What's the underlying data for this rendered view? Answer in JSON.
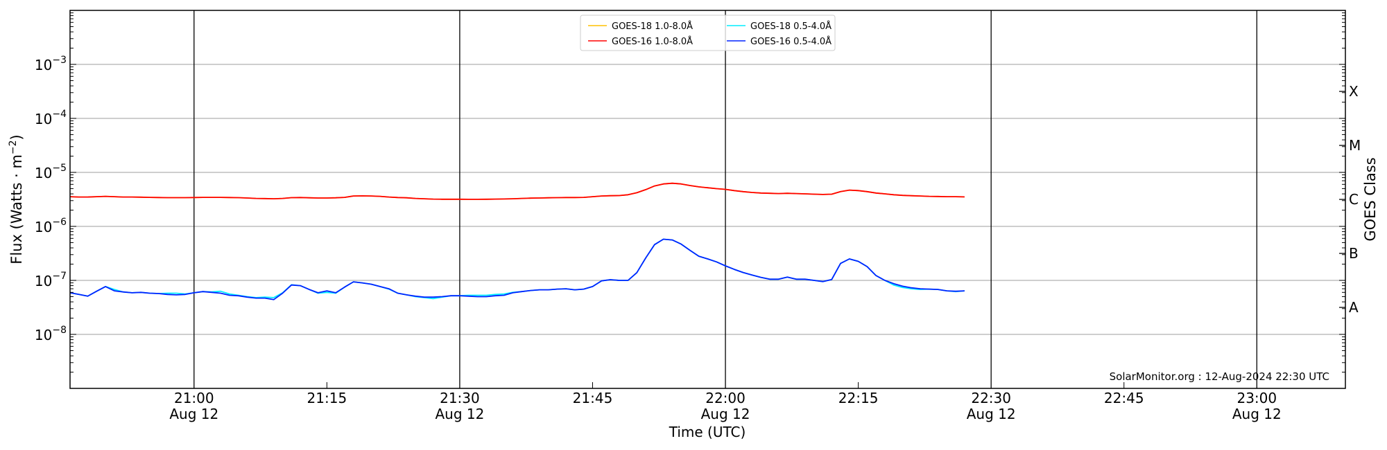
{
  "chart_data": {
    "type": "line",
    "xlabel": "Time (UTC)",
    "ylabel": {
      "prefix": "Flux (Watts · m",
      "exponent": "−2",
      "suffix": ")"
    },
    "y_scale": "log",
    "ylim": [
      1e-09,
      0.01
    ],
    "xlim": [
      "20:46",
      "23:10"
    ],
    "grid": true,
    "legend_position": "top-center",
    "x_ticks": [
      {
        "time": "21:00",
        "label": "21:00",
        "date": "Aug 12"
      },
      {
        "time": "21:15",
        "label": "21:15",
        "date": ""
      },
      {
        "time": "21:30",
        "label": "21:30",
        "date": "Aug 12"
      },
      {
        "time": "21:45",
        "label": "21:45",
        "date": ""
      },
      {
        "time": "22:00",
        "label": "22:00",
        "date": "Aug 12"
      },
      {
        "time": "22:15",
        "label": "22:15",
        "date": ""
      },
      {
        "time": "22:30",
        "label": "22:30",
        "date": "Aug 12"
      },
      {
        "time": "22:45",
        "label": "22:45",
        "date": ""
      },
      {
        "time": "23:00",
        "label": "23:00",
        "date": "Aug 12"
      }
    ],
    "y_ticks": [
      {
        "value": 1e-08,
        "base": "10",
        "exponent": "−8"
      },
      {
        "value": 1e-07,
        "base": "10",
        "exponent": "−7"
      },
      {
        "value": 1e-06,
        "base": "10",
        "exponent": "−6"
      },
      {
        "value": 1e-05,
        "base": "10",
        "exponent": "−5"
      },
      {
        "value": 0.0001,
        "base": "10",
        "exponent": "−4"
      },
      {
        "value": 0.001,
        "base": "10",
        "exponent": "−3"
      }
    ],
    "right_axis": {
      "label": "GOES Class",
      "classes": [
        {
          "label": "A",
          "value": 3.16e-08
        },
        {
          "label": "B",
          "value": 3.16e-07
        },
        {
          "label": "C",
          "value": 3.16e-06
        },
        {
          "label": "M",
          "value": 3.16e-05
        },
        {
          "label": "X",
          "value": 0.000316
        }
      ]
    },
    "start_time": "20:46",
    "interval_minutes": 1,
    "series": [
      {
        "name": "GOES-18 1.0-8.0Å",
        "color": "#ffc000",
        "values": [
          3.55e-06,
          3.5e-06,
          3.5e-06,
          3.55e-06,
          3.6e-06,
          3.55e-06,
          3.5e-06,
          3.5e-06,
          3.48e-06,
          3.45e-06,
          3.42e-06,
          3.4e-06,
          3.4e-06,
          3.4e-06,
          3.42e-06,
          3.45e-06,
          3.45e-06,
          3.45e-06,
          3.42e-06,
          3.4e-06,
          3.35e-06,
          3.3e-06,
          3.28e-06,
          3.25e-06,
          3.3e-06,
          3.4e-06,
          3.42e-06,
          3.38e-06,
          3.35e-06,
          3.35e-06,
          3.38e-06,
          3.45e-06,
          3.65e-06,
          3.68e-06,
          3.65e-06,
          3.6e-06,
          3.5e-06,
          3.42e-06,
          3.38e-06,
          3.3e-06,
          3.25e-06,
          3.2e-06,
          3.18e-06,
          3.18e-06,
          3.18e-06,
          3.17e-06,
          3.17e-06,
          3.18e-06,
          3.2e-06,
          3.22e-06,
          3.25e-06,
          3.3e-06,
          3.33e-06,
          3.35e-06,
          3.38e-06,
          3.4e-06,
          3.42e-06,
          3.42e-06,
          3.45e-06,
          3.55e-06,
          3.65e-06,
          3.7e-06,
          3.72e-06,
          3.85e-06,
          4.2e-06,
          4.8e-06,
          5.6e-06,
          6.1e-06,
          6.3e-06,
          6.1e-06,
          5.7e-06,
          5.4e-06,
          5.2e-06,
          5e-06,
          4.85e-06,
          4.6e-06,
          4.4e-06,
          4.25e-06,
          4.15e-06,
          4.1e-06,
          4.05e-06,
          4.1e-06,
          4.05e-06,
          4e-06,
          3.95e-06,
          3.9e-06,
          3.95e-06,
          4.4e-06,
          4.7e-06,
          4.6e-06,
          4.4e-06,
          4.15e-06,
          4e-06,
          3.85e-06,
          3.75e-06,
          3.7e-06,
          3.65e-06,
          3.6e-06,
          3.58e-06,
          3.55e-06,
          3.55e-06,
          3.52e-06
        ]
      },
      {
        "name": "GOES-16 1.0-8.0Å",
        "color": "#ff0000",
        "values": [
          3.55e-06,
          3.5e-06,
          3.5e-06,
          3.55e-06,
          3.6e-06,
          3.55e-06,
          3.5e-06,
          3.5e-06,
          3.48e-06,
          3.45e-06,
          3.42e-06,
          3.4e-06,
          3.4e-06,
          3.4e-06,
          3.42e-06,
          3.45e-06,
          3.45e-06,
          3.45e-06,
          3.42e-06,
          3.4e-06,
          3.35e-06,
          3.3e-06,
          3.28e-06,
          3.25e-06,
          3.3e-06,
          3.4e-06,
          3.42e-06,
          3.38e-06,
          3.35e-06,
          3.35e-06,
          3.38e-06,
          3.45e-06,
          3.65e-06,
          3.68e-06,
          3.65e-06,
          3.6e-06,
          3.5e-06,
          3.42e-06,
          3.38e-06,
          3.3e-06,
          3.25e-06,
          3.2e-06,
          3.18e-06,
          3.18e-06,
          3.18e-06,
          3.17e-06,
          3.17e-06,
          3.18e-06,
          3.2e-06,
          3.22e-06,
          3.25e-06,
          3.3e-06,
          3.33e-06,
          3.35e-06,
          3.38e-06,
          3.4e-06,
          3.42e-06,
          3.42e-06,
          3.45e-06,
          3.55e-06,
          3.65e-06,
          3.7e-06,
          3.72e-06,
          3.85e-06,
          4.2e-06,
          4.8e-06,
          5.6e-06,
          6.1e-06,
          6.3e-06,
          6.1e-06,
          5.7e-06,
          5.4e-06,
          5.2e-06,
          5e-06,
          4.85e-06,
          4.6e-06,
          4.4e-06,
          4.25e-06,
          4.15e-06,
          4.1e-06,
          4.05e-06,
          4.1e-06,
          4.05e-06,
          4e-06,
          3.95e-06,
          3.9e-06,
          3.95e-06,
          4.4e-06,
          4.7e-06,
          4.6e-06,
          4.4e-06,
          4.15e-06,
          4e-06,
          3.85e-06,
          3.75e-06,
          3.7e-06,
          3.65e-06,
          3.6e-06,
          3.58e-06,
          3.55e-06,
          3.55e-06,
          3.52e-06
        ]
      },
      {
        "name": "GOES-18 0.5-4.0Å",
        "color": "#00eeff",
        "values": [
          5.9e-08,
          5.5e-08,
          5.1e-08,
          6.3e-08,
          7.7e-08,
          6.8e-08,
          6.1e-08,
          5.9e-08,
          6e-08,
          5.8e-08,
          5.7e-08,
          5.8e-08,
          5.8e-08,
          5.6e-08,
          5.9e-08,
          6.2e-08,
          6.1e-08,
          6.3e-08,
          5.6e-08,
          5.3e-08,
          5e-08,
          4.8e-08,
          4.9e-08,
          4.8e-08,
          5.9e-08,
          8.3e-08,
          8e-08,
          6.8e-08,
          5.8e-08,
          6e-08,
          5.8e-08,
          7.5e-08,
          9.4e-08,
          9e-08,
          8.5e-08,
          7.7e-08,
          6.9e-08,
          5.8e-08,
          5.4e-08,
          5e-08,
          4.8e-08,
          4.6e-08,
          4.9e-08,
          5.2e-08,
          5.2e-08,
          5.3e-08,
          5.3e-08,
          5.3e-08,
          5.5e-08,
          5.6e-08,
          6e-08,
          6.2e-08,
          6.5e-08,
          6.7e-08,
          6.7e-08,
          6.9e-08,
          7e-08,
          6.7e-08,
          6.9e-08,
          7.7e-08,
          9.8e-08,
          1.03e-07,
          1e-07,
          1e-07,
          1.39e-07,
          2.6e-07,
          4.6e-07,
          5.8e-07,
          5.6e-07,
          4.7e-07,
          3.6e-07,
          2.8e-07,
          2.5e-07,
          2.2e-07,
          1.86e-07,
          1.6e-07,
          1.4e-07,
          1.26e-07,
          1.14e-07,
          1.05e-07,
          1.05e-07,
          1.15e-07,
          1.05e-07,
          1.05e-07,
          1e-07,
          9.5e-08,
          1.04e-07,
          2.07e-07,
          2.5e-07,
          2.25e-07,
          1.8e-07,
          1.23e-07,
          1e-07,
          8.2e-08,
          7.4e-08,
          7e-08,
          6.8e-08,
          6.9e-08,
          6.8e-08,
          6.4e-08,
          6.2e-08,
          6.4e-08
        ]
      },
      {
        "name": "GOES-16 0.5-4.0Å",
        "color": "#0022ff",
        "values": [
          5.9e-08,
          5.5e-08,
          5.1e-08,
          6.3e-08,
          7.7e-08,
          6.4e-08,
          6.1e-08,
          5.9e-08,
          6e-08,
          5.8e-08,
          5.7e-08,
          5.5e-08,
          5.4e-08,
          5.5e-08,
          5.9e-08,
          6.2e-08,
          6e-08,
          5.8e-08,
          5.3e-08,
          5.2e-08,
          4.9e-08,
          4.7e-08,
          4.7e-08,
          4.4e-08,
          5.8e-08,
          8.2e-08,
          8e-08,
          6.8e-08,
          5.9e-08,
          6.4e-08,
          5.9e-08,
          7.5e-08,
          9.4e-08,
          9e-08,
          8.5e-08,
          7.7e-08,
          7e-08,
          5.8e-08,
          5.4e-08,
          5.1e-08,
          4.9e-08,
          4.9e-08,
          5e-08,
          5.2e-08,
          5.2e-08,
          5.1e-08,
          5e-08,
          5e-08,
          5.2e-08,
          5.3e-08,
          5.9e-08,
          6.2e-08,
          6.5e-08,
          6.7e-08,
          6.7e-08,
          6.9e-08,
          7e-08,
          6.7e-08,
          6.9e-08,
          7.7e-08,
          9.8e-08,
          1.03e-07,
          1e-07,
          1e-07,
          1.39e-07,
          2.6e-07,
          4.6e-07,
          5.8e-07,
          5.6e-07,
          4.7e-07,
          3.6e-07,
          2.8e-07,
          2.5e-07,
          2.2e-07,
          1.86e-07,
          1.6e-07,
          1.4e-07,
          1.26e-07,
          1.14e-07,
          1.05e-07,
          1.05e-07,
          1.15e-07,
          1.05e-07,
          1.05e-07,
          1e-07,
          9.5e-08,
          1.04e-07,
          2.07e-07,
          2.5e-07,
          2.25e-07,
          1.8e-07,
          1.23e-07,
          1e-07,
          8.7e-08,
          7.8e-08,
          7.3e-08,
          7e-08,
          6.9e-08,
          6.8e-08,
          6.4e-08,
          6.3e-08,
          6.4e-08
        ]
      }
    ],
    "annotation": "SolarMonitor.org : 12-Aug-2024 22:30 UTC"
  }
}
